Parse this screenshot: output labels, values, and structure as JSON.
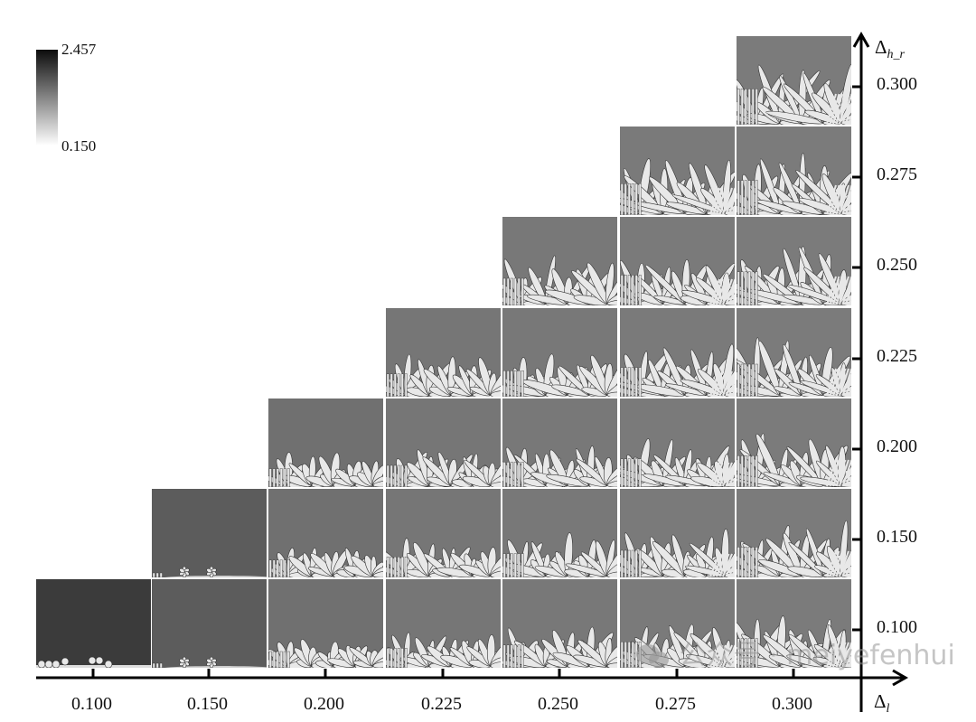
{
  "colorbar": {
    "max_label": "2.457",
    "min_label": "0.150"
  },
  "x_axis": {
    "title": "Δ",
    "title_sub": "l",
    "ticks": [
      "0.100",
      "0.150",
      "0.200",
      "0.225",
      "0.250",
      "0.275",
      "0.300"
    ]
  },
  "y_axis": {
    "title": "Δ",
    "title_sub": "h_r",
    "ticks": [
      "0.100",
      "0.150",
      "0.200",
      "0.225",
      "0.250",
      "0.275",
      "0.300"
    ]
  },
  "panels": {
    "rule": "panel shown where Δl index >= Δh_r index",
    "column_background": [
      "#3b3b3b",
      "#5c5c5c",
      "#707070",
      "#767676",
      "#787878",
      "#7a7a7a",
      "#7b7b7b"
    ],
    "dendrite_color": "#e8e8e8"
  },
  "watermark": {
    "text": "公众号 · meiyefenhui"
  }
}
